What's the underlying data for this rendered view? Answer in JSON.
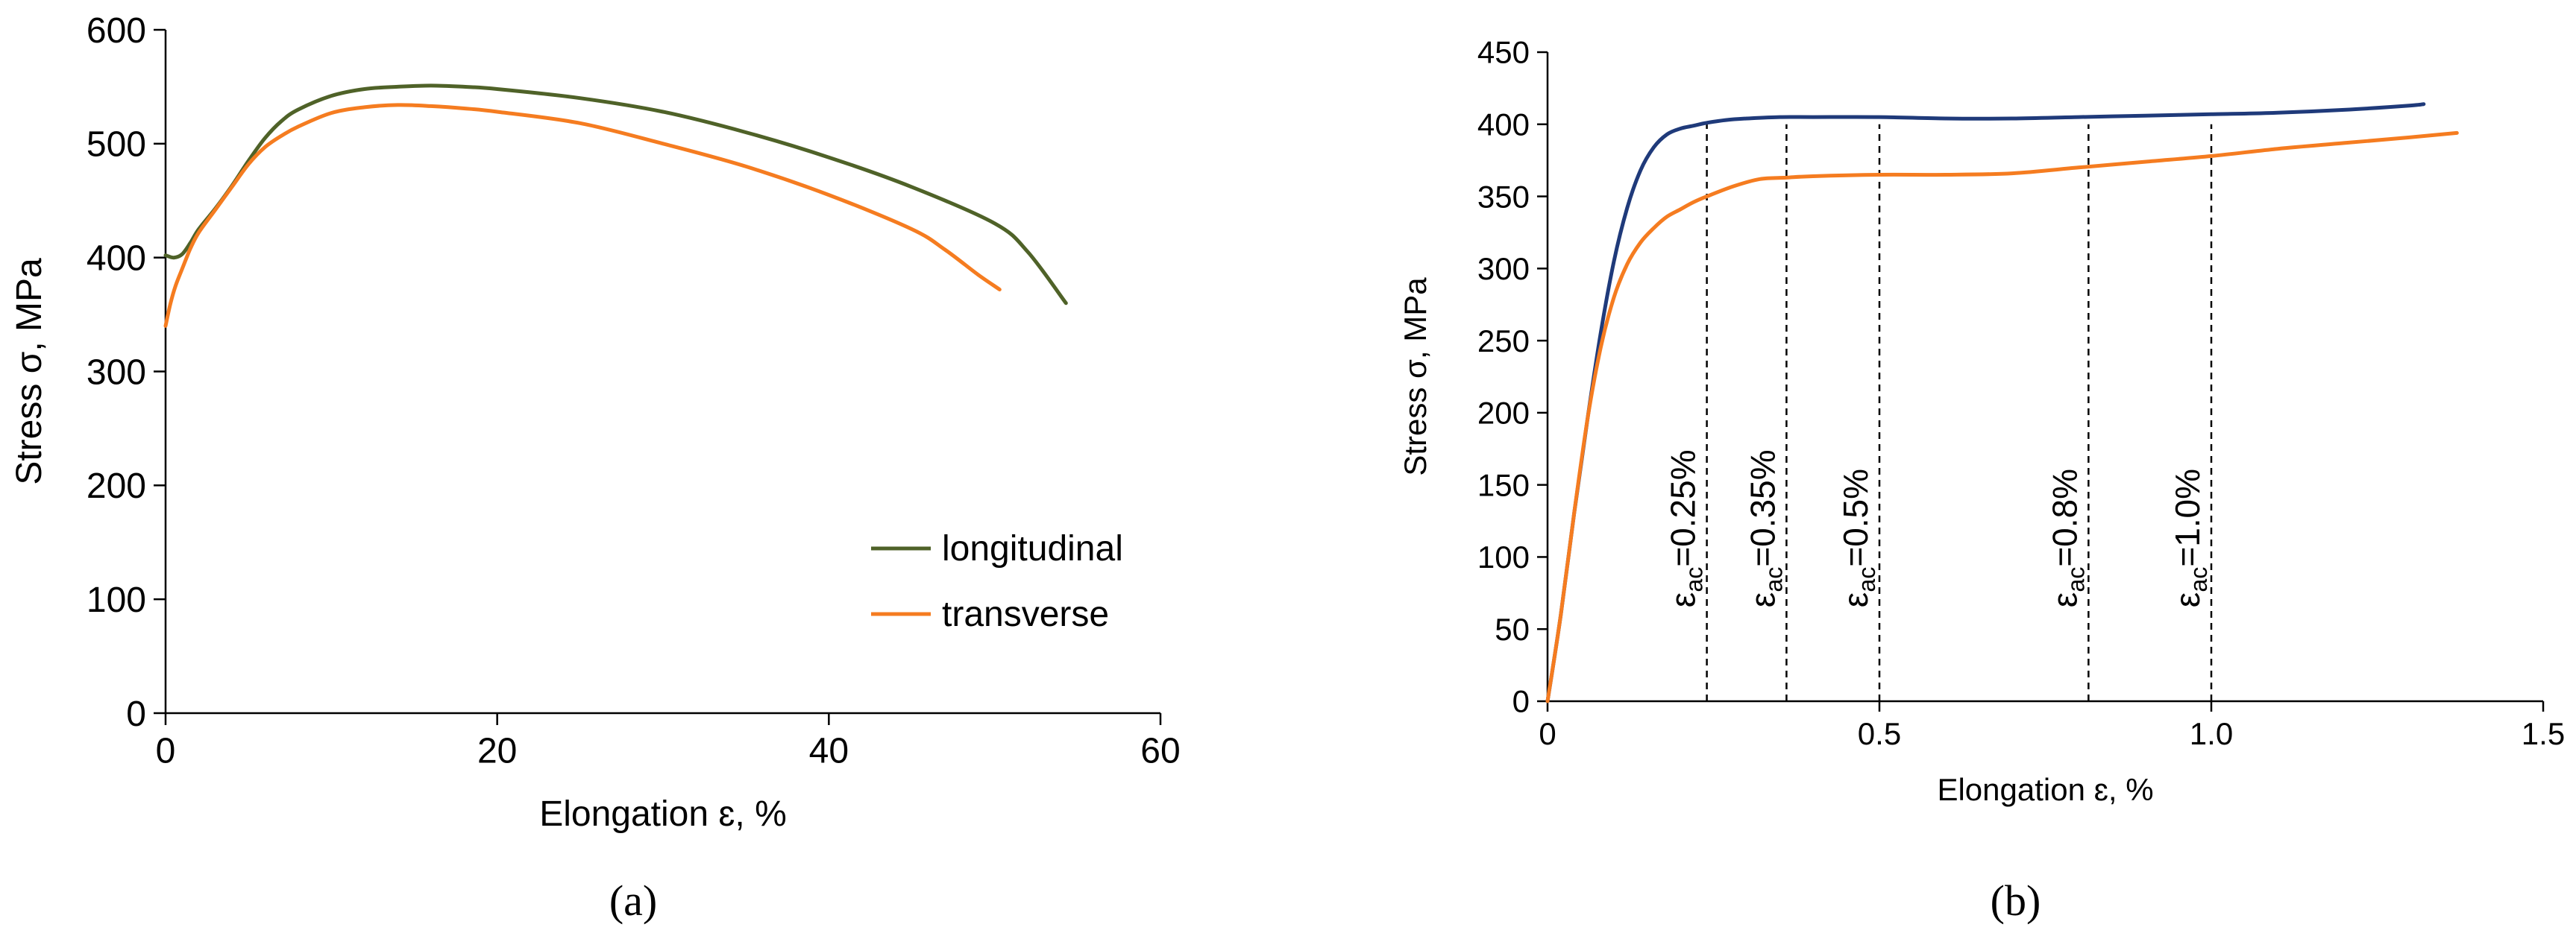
{
  "chart_data": [
    {
      "type": "line",
      "panel_label": "(a)",
      "xlabel": "Elongation ɛ, %",
      "ylabel": "Stress σ, MPa",
      "xlim": [
        0,
        60
      ],
      "ylim": [
        0,
        600
      ],
      "xticks": [
        0,
        20,
        40,
        60
      ],
      "yticks": [
        0,
        100,
        200,
        300,
        400,
        500,
        600
      ],
      "grid": false,
      "legend_position": "bottom-right",
      "series": [
        {
          "name": "longitudinal",
          "color": "#4f6228",
          "x": [
            0,
            0.5,
            1,
            1.5,
            2,
            3,
            4,
            5,
            6,
            7,
            8,
            10,
            12,
            14,
            16,
            18,
            20,
            25,
            30,
            35,
            40,
            45,
            50,
            52,
            54.3
          ],
          "y": [
            402,
            400,
            403,
            413,
            425,
            443,
            463,
            485,
            505,
            520,
            530,
            542,
            548,
            550,
            551,
            550,
            548,
            540,
            528,
            510,
            488,
            462,
            430,
            405,
            360
          ]
        },
        {
          "name": "transverse",
          "color": "#f57c20",
          "x": [
            0,
            0.3,
            0.6,
            1,
            1.5,
            2,
            3,
            4,
            5,
            6,
            7,
            8,
            10,
            12,
            14,
            16,
            18,
            20,
            25,
            30,
            35,
            40,
            45,
            47,
            49,
            50.3
          ],
          "y": [
            340,
            360,
            375,
            390,
            408,
            422,
            442,
            462,
            482,
            497,
            507,
            515,
            527,
            532,
            534,
            533,
            531,
            528,
            518,
            500,
            480,
            455,
            425,
            407,
            385,
            372
          ]
        }
      ]
    },
    {
      "type": "line",
      "panel_label": "(b)",
      "xlabel": "Elongation ɛ, %",
      "ylabel": "Stress σ, MPa",
      "xlim": [
        0,
        1.5
      ],
      "ylim": [
        0,
        450
      ],
      "xticks": [
        0,
        0.5,
        1.0,
        1.5
      ],
      "xtick_labels": [
        "0",
        "0.5",
        "1.0",
        "1.5"
      ],
      "yticks": [
        0,
        50,
        100,
        150,
        200,
        250,
        300,
        350,
        400,
        450
      ],
      "grid": false,
      "series": [
        {
          "name": "longitudinal",
          "color": "#1f3a7a",
          "x": [
            0,
            0.02,
            0.04,
            0.06,
            0.08,
            0.1,
            0.12,
            0.14,
            0.16,
            0.18,
            0.2,
            0.22,
            0.24,
            0.27,
            0.3,
            0.35,
            0.4,
            0.5,
            0.6,
            0.7,
            0.8,
            0.9,
            1.0,
            1.1,
            1.2,
            1.3,
            1.32
          ],
          "y": [
            0,
            60,
            130,
            195,
            255,
            305,
            342,
            368,
            384,
            393,
            397,
            399,
            401,
            403,
            404,
            405,
            405,
            405,
            404,
            404,
            405,
            406,
            407,
            408,
            410,
            413,
            414
          ]
        },
        {
          "name": "transverse",
          "color": "#f57c20",
          "x": [
            0,
            0.02,
            0.04,
            0.06,
            0.08,
            0.1,
            0.12,
            0.14,
            0.16,
            0.18,
            0.2,
            0.22,
            0.24,
            0.28,
            0.32,
            0.36,
            0.4,
            0.5,
            0.6,
            0.7,
            0.8,
            0.9,
            1.0,
            1.1,
            1.2,
            1.3,
            1.37
          ],
          "y": [
            0,
            60,
            130,
            195,
            245,
            280,
            303,
            318,
            328,
            336,
            341,
            346,
            350,
            357,
            362,
            363,
            364,
            365,
            365,
            366,
            370,
            374,
            378,
            383,
            387,
            391,
            394
          ]
        }
      ],
      "annotations": [
        {
          "label": "ε",
          "subscript": "ac",
          "value_text": "=0.25%",
          "x": 0.24
        },
        {
          "label": "ε",
          "subscript": "ac",
          "value_text": "=0.35%",
          "x": 0.36
        },
        {
          "label": "ε",
          "subscript": "ac",
          "value_text": "=0.5%",
          "x": 0.5
        },
        {
          "label": "ε",
          "subscript": "ac",
          "value_text": "=0.8%",
          "x": 0.815
        },
        {
          "label": "ε",
          "subscript": "ac",
          "value_text": "=1.0%",
          "x": 1.0
        }
      ]
    }
  ]
}
